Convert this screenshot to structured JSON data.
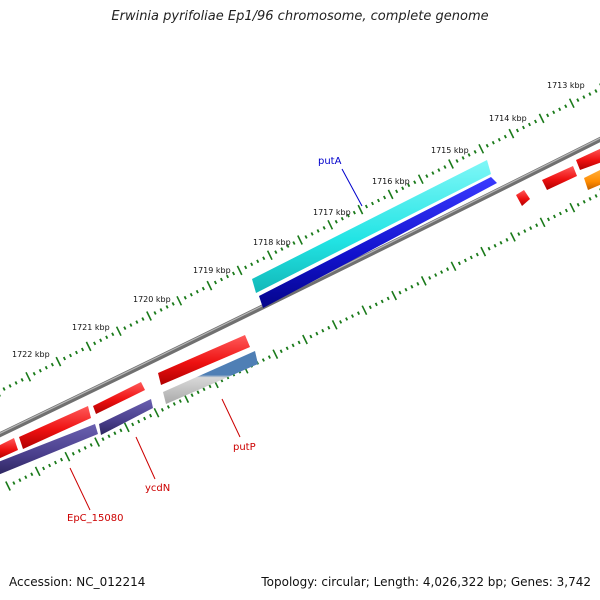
{
  "title": "Erwinia pyrifoliae Ep1/96 chromosome, complete genome",
  "footer": {
    "accession": "Accession: NC_012214",
    "stats": "Topology: circular; Length: 4,026,322 bp; Genes: 3,742"
  },
  "colors": {
    "backbone": "#808080",
    "tick": "#1a7a1a",
    "gene_red": "#ee1111",
    "gene_cyan": "#22e4e4",
    "gene_blue": "#1111cc",
    "gene_purple": "#4a3f8c",
    "gene_orange": "#ff8c00",
    "gene_steel": "#4f7fb5",
    "gene_grey": "#b9b9b9",
    "label_blue": "#0000cc",
    "label_red": "#cc0000"
  },
  "scale_labels": [
    "1713 kbp",
    "1714 kbp",
    "1715 kbp",
    "1716 kbp",
    "1717 kbp",
    "1718 kbp",
    "1719 kbp",
    "1720 kbp",
    "1721 kbp",
    "1722 kbp"
  ],
  "gene_labels": [
    "putA",
    "putP",
    "ycdN",
    "EpC_15080"
  ]
}
